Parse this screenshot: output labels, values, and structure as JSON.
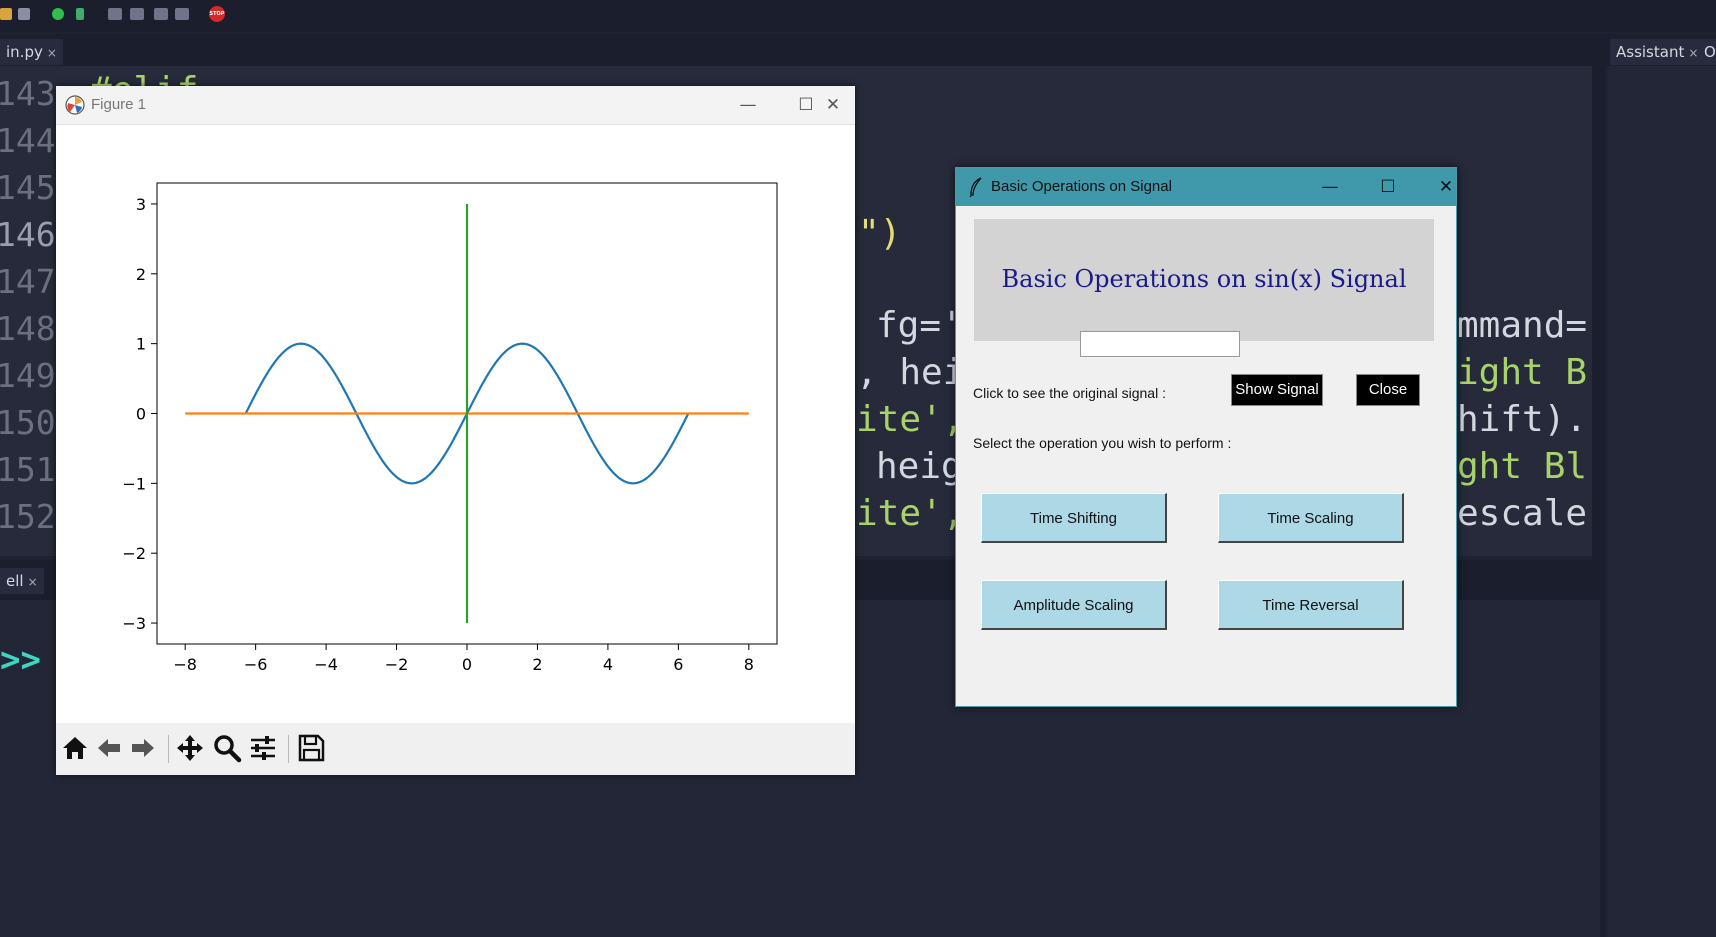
{
  "ide": {
    "tab_main": "in.py",
    "tab_assistant": "Assistant",
    "tab_o": "O",
    "tab_shell": "ell",
    "tab_close": "×",
    "line_numbers": [
      "143",
      "144",
      "145",
      "146",
      "147",
      "148",
      "149",
      "150",
      "151",
      "152"
    ],
    "code_fragments": {
      "c143": "#elif",
      "c146": "\")",
      "c148a": "fg='",
      "c148b": "mmand=",
      "c149a": ", hei",
      "c149b": "ight B",
      "c150a": "ite',",
      "c150b": "hift).",
      "c151a": "heig",
      "c151b": "ght Bl",
      "c152a": "ite',",
      "c152b": "escale"
    },
    "shell_prompt": ">>",
    "toolbar_stop": "STOP"
  },
  "figure": {
    "title": "Figure 1",
    "minimize": "—",
    "maximize": "☐",
    "close": "✕",
    "toolbar_icons": [
      "home-icon",
      "back-arrow-icon",
      "forward-arrow-icon",
      "pan-icon",
      "zoom-icon",
      "configure-subplots-icon",
      "save-icon"
    ]
  },
  "chart_data": {
    "type": "line",
    "title": "",
    "xlabel": "",
    "ylabel": "",
    "xlim": [
      -8.8,
      8.8
    ],
    "ylim": [
      -3.3,
      3.3
    ],
    "xticks": [
      -8,
      -6,
      -4,
      -2,
      0,
      2,
      4,
      6,
      8
    ],
    "yticks": [
      -3,
      -2,
      -1,
      0,
      1,
      2,
      3
    ],
    "tick_labels_x": [
      "−8",
      "−6",
      "−4",
      "−2",
      "0",
      "2",
      "4",
      "6",
      "8"
    ],
    "tick_labels_y": [
      "−3",
      "−2",
      "−1",
      "0",
      "1",
      "2",
      "3"
    ],
    "grid": false,
    "series": [
      {
        "function": "sin(x)",
        "x_range": [
          -6.283,
          6.283
        ],
        "color": "#1f77b4"
      },
      {
        "function": "y = 0",
        "x_range": [
          -8,
          8
        ],
        "color": "#ff7f0e"
      },
      {
        "function": "x = 0",
        "y_range": [
          -3,
          3
        ],
        "color": "#2ca02c"
      }
    ]
  },
  "tk": {
    "title": "Basic Operations on Signal",
    "minimize": "—",
    "maximize": "☐",
    "close": "✕",
    "heading": "Basic Operations on sin(x) Signal",
    "entry_value": "",
    "original_label": "Click to see the original signal :",
    "show_signal": "Show Signal",
    "close_btn": "Close",
    "select_label": "Select the operation you wish to perform :",
    "ops": [
      "Time Shifting",
      "Time Scaling",
      "Amplitude Scaling",
      "Time Reversal"
    ],
    "accent": "#3f99ab",
    "button_color": "#add8e6"
  }
}
